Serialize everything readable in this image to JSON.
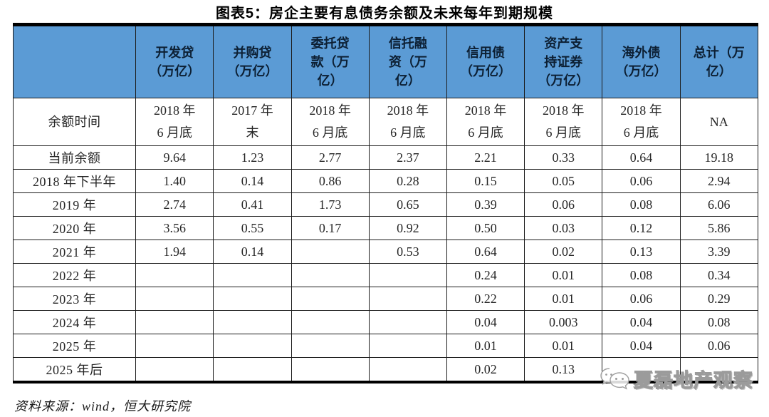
{
  "title": "图表5：房企主要有息债务余额及未来每年到期规模",
  "source_note": "资料来源：wind，恒大研究院",
  "watermark": {
    "text": "夏磊地产观察",
    "icon": "wechat-chat-bubbles"
  },
  "colors": {
    "header_bg": "#5B9BD5",
    "header_text": "#0c1f33",
    "body_text": "#262626",
    "border": "#1c1c1c",
    "thick_border": "#000000",
    "watermark_gray": "#9b9b9b"
  },
  "table": {
    "columns": [
      "",
      "开发贷\n（万亿）",
      "并购贷\n（万亿）",
      "委托贷\n款（万\n亿）",
      "信托融\n资（万\n亿）",
      "信用债\n（万亿）",
      "资产支\n持证券\n（万亿）",
      "海外债\n（万亿）",
      "总计（万\n亿）"
    ],
    "rows": [
      {
        "label": "余额时间",
        "cells": [
          "2018 年\n6 月底",
          "2017 年\n末",
          "2018 年\n6 月底",
          "2018 年\n6 月底",
          "2018 年\n6 月底",
          "2018 年\n6 月底",
          "2018 年\n6 月底",
          "NA"
        ]
      },
      {
        "label": "当前余额",
        "cells": [
          "9.64",
          "1.23",
          "2.77",
          "2.37",
          "2.21",
          "0.33",
          "0.64",
          "19.18"
        ]
      },
      {
        "label": "2018 年下半年",
        "cells": [
          "1.40",
          "0.14",
          "0.86",
          "0.28",
          "0.15",
          "0.05",
          "0.06",
          "2.94"
        ]
      },
      {
        "label": "2019 年",
        "cells": [
          "2.74",
          "0.41",
          "1.73",
          "0.65",
          "0.39",
          "0.06",
          "0.08",
          "6.06"
        ]
      },
      {
        "label": "2020 年",
        "cells": [
          "3.56",
          "0.55",
          "0.17",
          "0.92",
          "0.50",
          "0.03",
          "0.12",
          "5.86"
        ]
      },
      {
        "label": "2021 年",
        "cells": [
          "1.94",
          "0.14",
          "",
          "0.53",
          "0.64",
          "0.02",
          "0.13",
          "3.39"
        ]
      },
      {
        "label": "2022 年",
        "cells": [
          "",
          "",
          "",
          "",
          "0.24",
          "0.01",
          "0.08",
          "0.34"
        ]
      },
      {
        "label": "2023 年",
        "cells": [
          "",
          "",
          "",
          "",
          "0.22",
          "0.01",
          "0.06",
          "0.29"
        ]
      },
      {
        "label": "2024 年",
        "cells": [
          "",
          "",
          "",
          "",
          "0.04",
          "0.003",
          "0.04",
          "0.08"
        ]
      },
      {
        "label": "2025 年",
        "cells": [
          "",
          "",
          "",
          "",
          "0.01",
          "0.01",
          "0.04",
          "0.06"
        ]
      },
      {
        "label": "2025 年后",
        "cells": [
          "",
          "",
          "",
          "",
          "0.02",
          "0.13",
          "",
          ""
        ]
      }
    ]
  }
}
